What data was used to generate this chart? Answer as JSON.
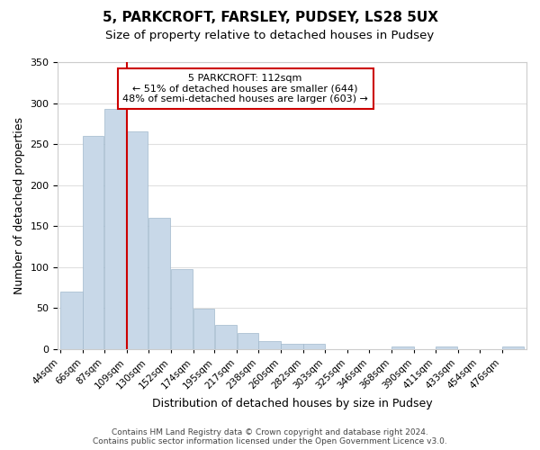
{
  "title": "5, PARKCROFT, FARSLEY, PUDSEY, LS28 5UX",
  "subtitle": "Size of property relative to detached houses in Pudsey",
  "xlabel": "Distribution of detached houses by size in Pudsey",
  "ylabel": "Number of detached properties",
  "bar_color": "#c8d8e8",
  "bar_edge_color": "#a0b8cc",
  "vline_x": 109,
  "vline_color": "#cc0000",
  "categories": [
    "44sqm",
    "66sqm",
    "87sqm",
    "109sqm",
    "130sqm",
    "152sqm",
    "174sqm",
    "195sqm",
    "217sqm",
    "238sqm",
    "260sqm",
    "282sqm",
    "303sqm",
    "325sqm",
    "346sqm",
    "368sqm",
    "390sqm",
    "411sqm",
    "433sqm",
    "454sqm",
    "476sqm"
  ],
  "bin_edges": [
    44,
    66,
    87,
    109,
    130,
    152,
    174,
    195,
    217,
    238,
    260,
    282,
    303,
    325,
    346,
    368,
    390,
    411,
    433,
    454,
    476
  ],
  "values": [
    70,
    260,
    293,
    265,
    160,
    97,
    49,
    29,
    19,
    10,
    6,
    6,
    0,
    0,
    0,
    3,
    0,
    3,
    0,
    0,
    3
  ],
  "ylim": [
    0,
    350
  ],
  "yticks": [
    0,
    50,
    100,
    150,
    200,
    250,
    300,
    350
  ],
  "annotation_title": "5 PARKCROFT: 112sqm",
  "annotation_line1": "← 51% of detached houses are smaller (644)",
  "annotation_line2": "48% of semi-detached houses are larger (603) →",
  "annotation_box_color": "#ffffff",
  "annotation_box_edge": "#cc0000",
  "footer_line1": "Contains HM Land Registry data © Crown copyright and database right 2024.",
  "footer_line2": "Contains public sector information licensed under the Open Government Licence v3.0.",
  "background_color": "#ffffff",
  "grid_color": "#e0e0e0"
}
